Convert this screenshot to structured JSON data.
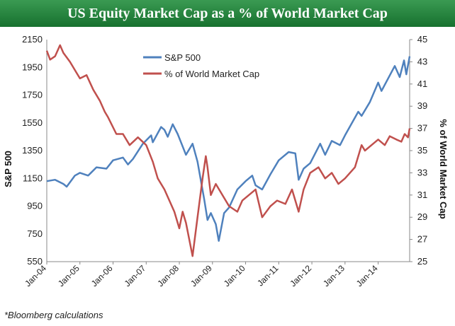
{
  "title": "US Equity Market Cap as a % of World Market Cap",
  "footnote": "*Bloomberg calculations",
  "chart_data": {
    "type": "line",
    "title": "US Equity Market Cap as a % of World Market Cap",
    "xlabel": "",
    "ylabel": "S&P 500",
    "y2label": "% of World Market Cap",
    "ylim": [
      550,
      2150
    ],
    "y2lim": [
      25,
      45
    ],
    "xlim": [
      2004.0,
      2014.95
    ],
    "yticks": [
      "550",
      "750",
      "950",
      "1150",
      "1350",
      "1550",
      "1750",
      "1950",
      "2150"
    ],
    "y2ticks": [
      "25",
      "27",
      "29",
      "31",
      "33",
      "35",
      "37",
      "39",
      "41",
      "43",
      "45"
    ],
    "xticks": [
      "Jan-04",
      "Jan-05",
      "Jan-06",
      "Jan-07",
      "Jan-08",
      "Jan-09",
      "Jan-10",
      "Jan-11",
      "Jan-12",
      "Jan-13",
      "Jan-14"
    ],
    "legend_position": "top-center",
    "series": [
      {
        "name": "S&P 500",
        "axis": "left",
        "color": "#4f81bd",
        "x": [
          2004.0,
          2004.25,
          2004.5,
          2004.6,
          2004.85,
          2005.0,
          2005.25,
          2005.5,
          2005.8,
          2006.0,
          2006.3,
          2006.45,
          2006.6,
          2006.9,
          2007.15,
          2007.2,
          2007.45,
          2007.55,
          2007.65,
          2007.8,
          2007.95,
          2008.2,
          2008.4,
          2008.55,
          2008.75,
          2008.85,
          2008.95,
          2009.1,
          2009.19,
          2009.35,
          2009.5,
          2009.75,
          2010.0,
          2010.2,
          2010.3,
          2010.5,
          2010.75,
          2011.0,
          2011.3,
          2011.5,
          2011.6,
          2011.75,
          2011.95,
          2012.25,
          2012.4,
          2012.6,
          2012.85,
          2013.0,
          2013.4,
          2013.5,
          2013.75,
          2014.0,
          2014.1,
          2014.5,
          2014.65,
          2014.78,
          2014.85,
          2014.95
        ],
        "values": [
          1130,
          1140,
          1110,
          1090,
          1170,
          1190,
          1170,
          1230,
          1220,
          1280,
          1300,
          1250,
          1290,
          1400,
          1460,
          1410,
          1520,
          1500,
          1450,
          1540,
          1470,
          1320,
          1400,
          1270,
          1000,
          850,
          900,
          820,
          700,
          900,
          940,
          1070,
          1130,
          1170,
          1100,
          1070,
          1180,
          1280,
          1340,
          1330,
          1140,
          1220,
          1260,
          1400,
          1320,
          1420,
          1390,
          1460,
          1630,
          1600,
          1700,
          1840,
          1780,
          1960,
          1880,
          2000,
          1900,
          2030
        ]
      },
      {
        "name": "% of World Market Cap",
        "axis": "right",
        "color": "#c0504d",
        "x": [
          2004.0,
          2004.1,
          2004.25,
          2004.4,
          2004.5,
          2004.7,
          2004.9,
          2005.0,
          2005.2,
          2005.4,
          2005.6,
          2005.75,
          2005.85,
          2006.1,
          2006.3,
          2006.5,
          2006.75,
          2007.0,
          2007.2,
          2007.35,
          2007.55,
          2007.7,
          2007.85,
          2008.0,
          2008.1,
          2008.2,
          2008.4,
          2008.55,
          2008.7,
          2008.8,
          2008.85,
          2008.95,
          2009.1,
          2009.3,
          2009.5,
          2009.75,
          2009.9,
          2010.1,
          2010.3,
          2010.5,
          2010.75,
          2010.95,
          2011.2,
          2011.4,
          2011.6,
          2011.75,
          2011.95,
          2012.2,
          2012.4,
          2012.6,
          2012.8,
          2013.0,
          2013.3,
          2013.5,
          2013.6,
          2013.8,
          2014.0,
          2014.2,
          2014.35,
          2014.55,
          2014.7,
          2014.8,
          2014.9,
          2014.95
        ],
        "values": [
          44.0,
          43.2,
          43.5,
          44.5,
          43.8,
          43.0,
          42.0,
          41.5,
          41.8,
          40.5,
          39.5,
          38.5,
          38.0,
          36.5,
          36.5,
          35.5,
          36.2,
          35.5,
          34.0,
          32.5,
          31.5,
          30.5,
          29.5,
          28.0,
          29.5,
          28.5,
          25.5,
          29.0,
          32.5,
          34.5,
          33.5,
          31.0,
          32.0,
          31.0,
          30.0,
          29.5,
          30.5,
          31.0,
          31.5,
          29.0,
          30.0,
          30.5,
          30.2,
          31.5,
          29.5,
          31.5,
          33.0,
          33.5,
          32.5,
          33.0,
          32.0,
          32.5,
          33.5,
          35.5,
          35.0,
          35.5,
          36.0,
          35.5,
          36.3,
          36.0,
          35.8,
          36.5,
          36.2,
          37.0
        ]
      }
    ]
  }
}
